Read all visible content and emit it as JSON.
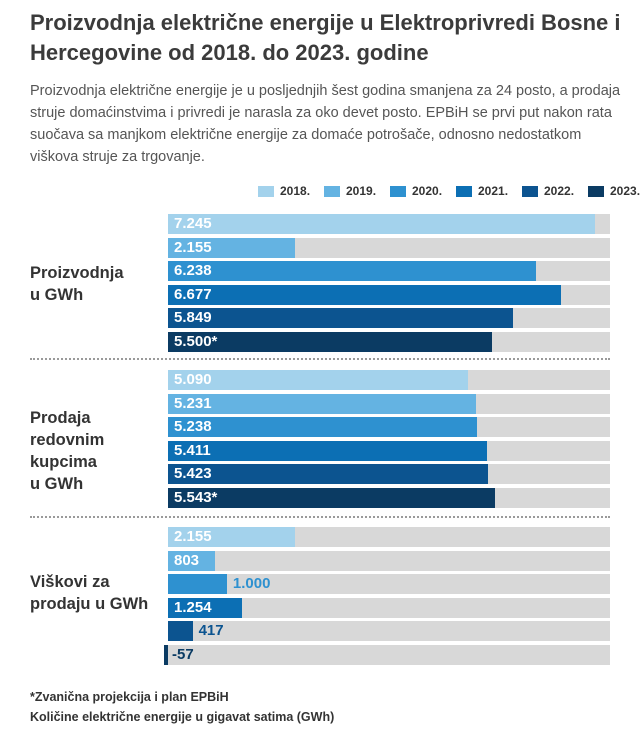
{
  "title": "Proizvodnja električne energije u Elektroprivredi Bosne i Hercegovine od 2018. do 2023. godine",
  "subtitle": "Proizvodnja električne energije je u posljednjih šest godina smanjena za 24 posto, a prodaja struje domaćinstvima i privredi je narasla za oko devet posto. EPBiH se prvi put nakon rata suočava sa manjkom električne energije za domaće potrošače, odnosno nedostatkom viškova struje za trgovanje.",
  "footnote1": "*Zvanična projekcija i plan EPBiH",
  "footnote2": "Količine električne energije u gigavat satima (GWh)",
  "chart_data": {
    "type": "bar",
    "orientation": "horizontal",
    "categories": [
      "Proizvodnja u GWh",
      "Prodaja redovnim kupcima u GWh",
      "Viškovi za prodaju u GWh"
    ],
    "xlim": [
      0,
      7500
    ],
    "legend_position": "top-right",
    "series": [
      {
        "name": "2018.",
        "color": "#a3d2ec",
        "values": [
          7245,
          5090,
          2155
        ],
        "labels": [
          "7.245",
          "5.090",
          "2.155"
        ]
      },
      {
        "name": "2019.",
        "color": "#64b3e2",
        "values": [
          2155,
          5231,
          803
        ],
        "labels": [
          "2.155",
          "5.231",
          "803"
        ]
      },
      {
        "name": "2020.",
        "color": "#2e91d0",
        "values": [
          6238,
          5238,
          1000
        ],
        "labels": [
          "6.238",
          "5.238",
          "1.000"
        ]
      },
      {
        "name": "2021.",
        "color": "#0c6fb4",
        "values": [
          6677,
          5411,
          1254
        ],
        "labels": [
          "6.677",
          "5.411",
          "1.254"
        ]
      },
      {
        "name": "2022.",
        "color": "#0c5490",
        "values": [
          5849,
          5423,
          417
        ],
        "labels": [
          "5.849",
          "5.423",
          "417"
        ]
      },
      {
        "name": "2023.",
        "color": "#0b3b63",
        "values": [
          5500,
          5543,
          -57
        ],
        "labels": [
          "5.500*",
          "5.543*",
          "-57"
        ]
      }
    ],
    "group_labels": [
      [
        "Proizvodnja",
        "u GWh"
      ],
      [
        "Prodaja",
        "redovnim",
        "kupcima",
        "u GWh"
      ],
      [
        "Viškovi za",
        "prodaju u GWh"
      ]
    ]
  }
}
